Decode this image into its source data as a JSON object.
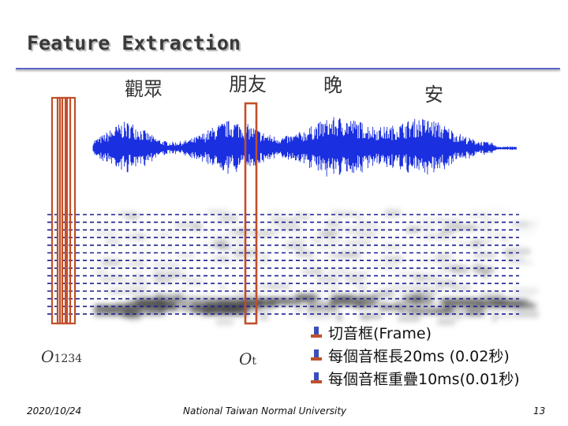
{
  "slide": {
    "title": "Feature Extraction",
    "words": [
      "觀眾",
      "朋友",
      "晚",
      "安"
    ],
    "obs_symbol": "O",
    "obs_subscripts": "1234",
    "ot_symbol": "O",
    "ot_subscript": "t",
    "bullets": [
      "切音框(Frame)",
      "每個音框長20ms (0.02秒)",
      "每個音框重疊10ms(0.01秒)"
    ],
    "footer": {
      "date": "2020/10/24",
      "organization": "National Taiwan Normal University",
      "page": "13"
    }
  },
  "colors": {
    "waveform": "#1a2fe0",
    "frame_box": "#c0502a",
    "grid_line": "#1a1f8f",
    "title_rule": "#5a63c8",
    "bullet_icon": "#3a4fb8"
  },
  "icons": {
    "bullet": "bullet-square-icon"
  }
}
